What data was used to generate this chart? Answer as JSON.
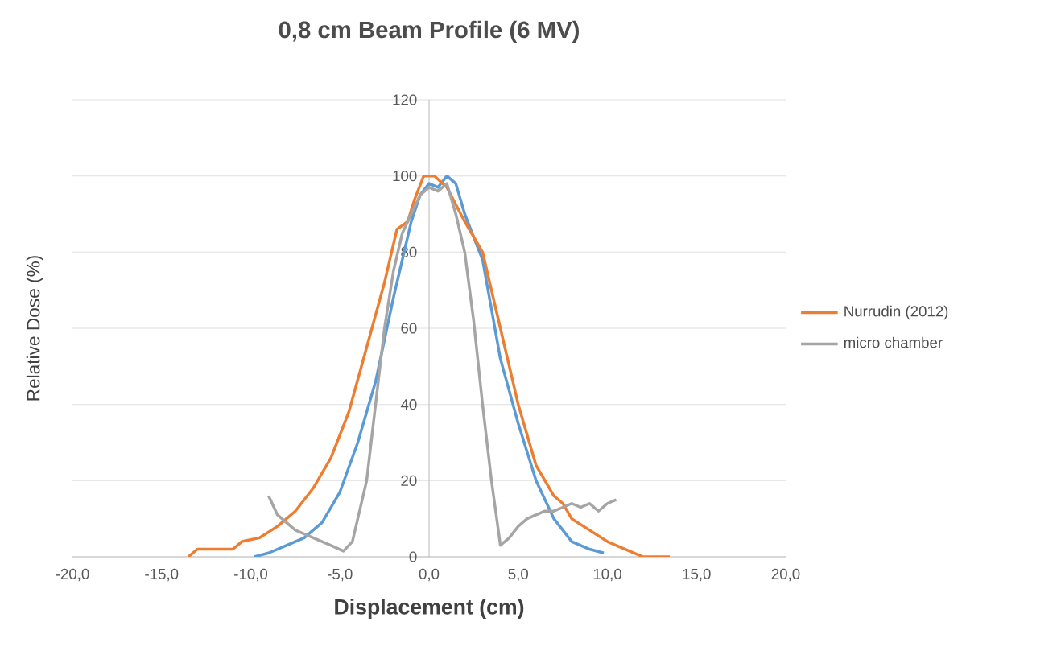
{
  "chart_data": {
    "type": "line",
    "title": "0,8 cm Beam Profile (6 MV)",
    "xlabel": "Displacement (cm)",
    "ylabel": "Relative Dose (%)",
    "xlim": [
      -20,
      20
    ],
    "xticks": [
      {
        "value": -20,
        "label": "-20,0"
      },
      {
        "value": -15,
        "label": "-15,0"
      },
      {
        "value": -10,
        "label": "-10,0"
      },
      {
        "value": -5,
        "label": "-5,0"
      },
      {
        "value": 0,
        "label": "0,0"
      },
      {
        "value": 5,
        "label": "5,0"
      },
      {
        "value": 10,
        "label": "10,0"
      },
      {
        "value": 15,
        "label": "15,0"
      },
      {
        "value": 20,
        "label": "20,0"
      }
    ],
    "ylim": [
      0,
      120
    ],
    "yticks": [
      0,
      20,
      40,
      60,
      80,
      100,
      120
    ],
    "grid": "y",
    "legend": "right",
    "line_style": "solid",
    "marker": "none",
    "series": [
      {
        "color": "#5b9bd5",
        "x": [
          -9.8,
          -9,
          -8,
          -7,
          -6,
          -5,
          -4,
          -3,
          -2,
          -1,
          -0.5,
          0,
          0.5,
          1,
          1.5,
          2,
          3,
          4,
          5,
          6,
          7,
          8,
          9,
          9.8
        ],
        "values": [
          0,
          1,
          3,
          5,
          9,
          17,
          30,
          46,
          68,
          88,
          95,
          98,
          97,
          100,
          98,
          90,
          78,
          52,
          35,
          20,
          10,
          4,
          2,
          1
        ]
      },
      {
        "name": "Nurrudin (2012)",
        "color": "#ed7d31",
        "x": [
          -13.5,
          -13,
          -11,
          -10.5,
          -9.5,
          -8.5,
          -7.5,
          -6.5,
          -5.5,
          -4.5,
          -3.5,
          -2.5,
          -1.8,
          -1.2,
          -0.8,
          -0.3,
          0.3,
          1,
          2,
          3,
          4,
          5,
          6,
          7,
          7.5,
          8,
          9,
          10,
          11,
          12,
          13.5
        ],
        "values": [
          0,
          2,
          2,
          4,
          5,
          8,
          12,
          18,
          26,
          38,
          55,
          72,
          86,
          88,
          94,
          100,
          100,
          97,
          88,
          80,
          60,
          40,
          24,
          16,
          14,
          10,
          7,
          4,
          2,
          0,
          0
        ]
      },
      {
        "name": "micro chamber",
        "color": "#a5a5a5",
        "x": [
          -9,
          -8.5,
          -7.5,
          -6.5,
          -5.5,
          -4.8,
          -4.3,
          -3.5,
          -3,
          -2.5,
          -2,
          -1.5,
          -1,
          -0.5,
          0,
          0.5,
          1,
          1.5,
          2,
          2.5,
          3,
          3.5,
          4,
          4.5,
          5,
          5.5,
          6,
          6.5,
          7,
          7.5,
          8,
          8.5,
          9,
          9.5,
          10,
          10.5
        ],
        "values": [
          16,
          11,
          7,
          5,
          3,
          1.5,
          4,
          20,
          40,
          60,
          75,
          85,
          90,
          95,
          97,
          96,
          98,
          90,
          80,
          62,
          40,
          20,
          3,
          5,
          8,
          10,
          11,
          12,
          12,
          13,
          14,
          13,
          14,
          12,
          14,
          15
        ]
      }
    ]
  }
}
